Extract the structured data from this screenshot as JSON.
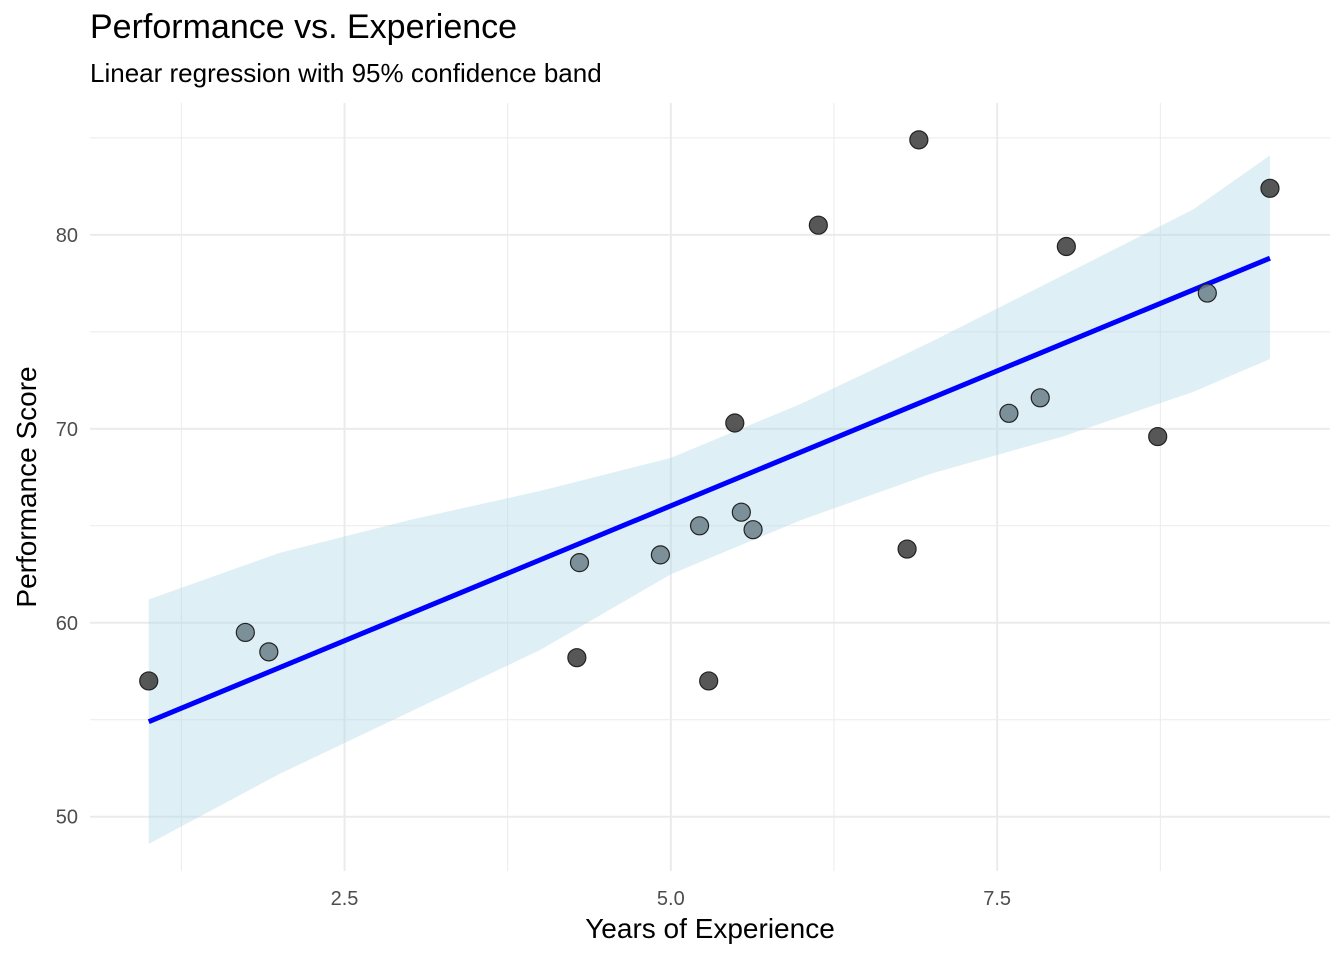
{
  "chart_data": {
    "type": "scatter",
    "title": "Performance vs. Experience",
    "subtitle": "Linear regression with 95% confidence band",
    "xlabel": "Years of Experience",
    "ylabel": "Performance Score",
    "xlim": [
      0.55,
      10.05
    ],
    "ylim": [
      47.2,
      86.8
    ],
    "x_ticks": [
      2.5,
      5.0,
      7.5
    ],
    "y_ticks": [
      50,
      60,
      70,
      80
    ],
    "grid": true,
    "points": [
      {
        "x": 1.0,
        "y": 57.0,
        "style": "dark"
      },
      {
        "x": 1.74,
        "y": 59.5,
        "style": "light"
      },
      {
        "x": 1.92,
        "y": 58.5,
        "style": "light"
      },
      {
        "x": 4.28,
        "y": 58.2,
        "style": "dark"
      },
      {
        "x": 4.3,
        "y": 63.1,
        "style": "light"
      },
      {
        "x": 4.92,
        "y": 63.5,
        "style": "light"
      },
      {
        "x": 5.22,
        "y": 65.0,
        "style": "light"
      },
      {
        "x": 5.29,
        "y": 57.0,
        "style": "dark"
      },
      {
        "x": 5.49,
        "y": 70.3,
        "style": "dark"
      },
      {
        "x": 5.54,
        "y": 65.7,
        "style": "light"
      },
      {
        "x": 5.63,
        "y": 64.8,
        "style": "light"
      },
      {
        "x": 6.13,
        "y": 80.5,
        "style": "dark"
      },
      {
        "x": 6.81,
        "y": 63.8,
        "style": "dark"
      },
      {
        "x": 6.9,
        "y": 84.9,
        "style": "dark"
      },
      {
        "x": 7.59,
        "y": 70.8,
        "style": "light"
      },
      {
        "x": 7.83,
        "y": 71.6,
        "style": "light"
      },
      {
        "x": 8.03,
        "y": 79.4,
        "style": "dark"
      },
      {
        "x": 8.73,
        "y": 69.6,
        "style": "dark"
      },
      {
        "x": 9.11,
        "y": 77.0,
        "style": "light"
      },
      {
        "x": 9.59,
        "y": 82.4,
        "style": "dark"
      }
    ],
    "regression": {
      "x": [
        1.0,
        9.59
      ],
      "y": [
        54.9,
        78.8
      ]
    },
    "confidence_band": {
      "x": [
        1.0,
        2.0,
        3.0,
        4.0,
        5.0,
        6.0,
        7.0,
        8.0,
        9.0,
        9.59
      ],
      "upper": [
        61.2,
        63.6,
        65.3,
        66.8,
        68.5,
        71.3,
        74.5,
        77.9,
        81.3,
        84.1
      ],
      "lower": [
        48.6,
        52.2,
        55.4,
        58.6,
        62.5,
        65.3,
        67.7,
        69.6,
        71.9,
        73.6
      ]
    },
    "colors": {
      "regression_line": "#0000ff",
      "band": "#add8e6",
      "point_dark": "#3a3a3a",
      "point_light": "#6b7f89",
      "grid": "#ebebeb"
    }
  }
}
